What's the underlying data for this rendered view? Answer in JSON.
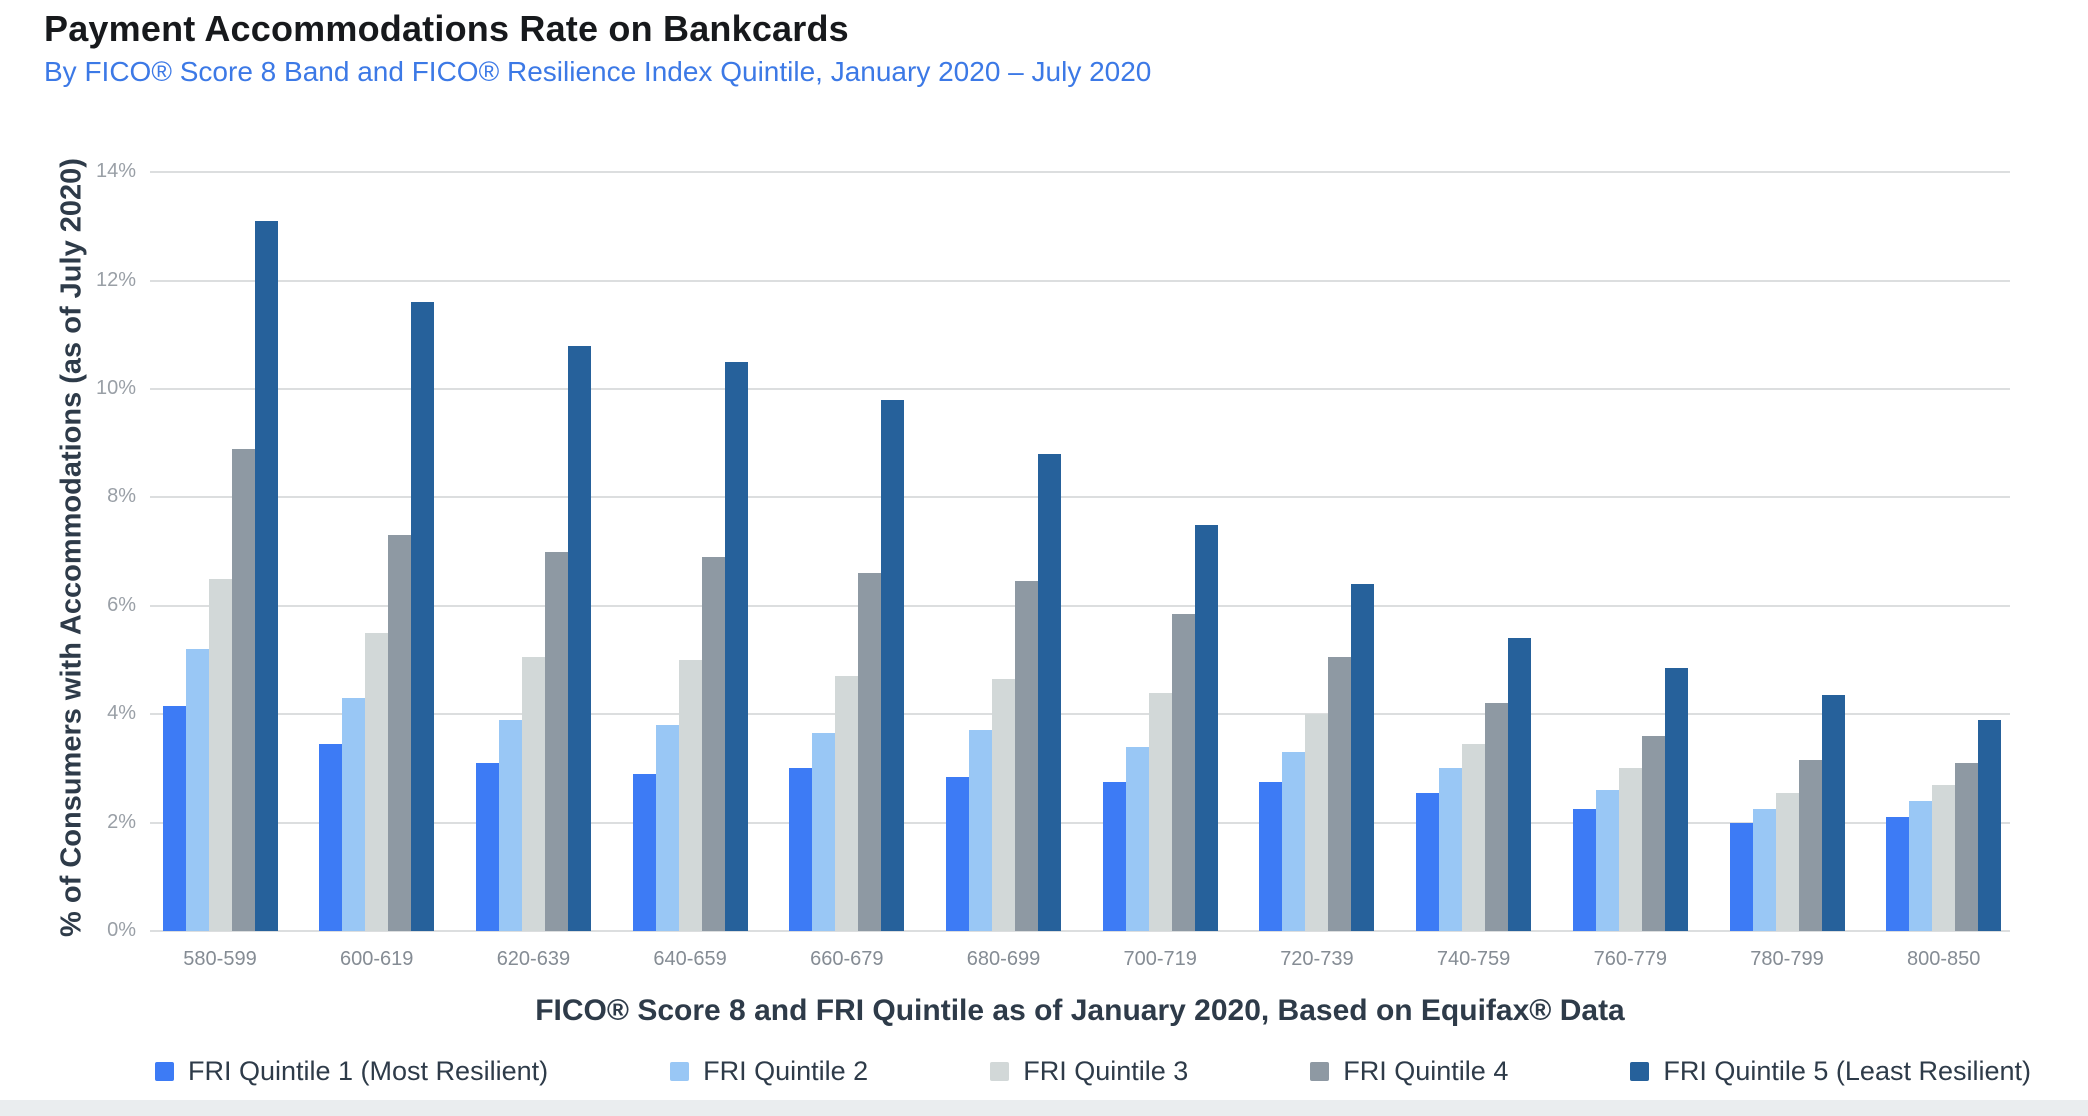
{
  "header": {
    "title": "Payment Accommodations Rate on Bankcards",
    "subtitle": "By FICO® Score 8 Band and FICO® Resilience Index Quintile, January 2020 – July 2020"
  },
  "colors": {
    "title_text": "#17191c",
    "subtitle_text": "#3c79e6",
    "axis_title_text": "#2e3b49",
    "tick_text": "#999fa6",
    "category_text": "#858c94",
    "gridline": "#dcdedf",
    "quintile1": "#3d7bf5",
    "quintile2": "#99c7f5",
    "quintile3": "#d2d8d8",
    "quintile4": "#8e99a3",
    "quintile5": "#26619b",
    "footer_strip": "#eaedef"
  },
  "chart_data": {
    "type": "bar",
    "title": "Payment Accommodations Rate on Bankcards",
    "subtitle": "By FICO® Score 8 Band and FICO® Resilience Index Quintile, January 2020 – July 2020",
    "xlabel": "FICO® Score 8 and FRI Quintile as of January 2020, Based on Equifax® Data",
    "ylabel": "% of Consumers with Accommodations (as of July 2020)",
    "ylim": [
      0,
      14
    ],
    "ytick_step": 2,
    "ytick_labels": [
      "0%",
      "2%",
      "4%",
      "6%",
      "8%",
      "10%",
      "12%",
      "14%"
    ],
    "grid": "horizontal",
    "legend_position": "bottom",
    "categories": [
      "580-599",
      "600-619",
      "620-639",
      "640-659",
      "660-679",
      "680-699",
      "700-719",
      "720-739",
      "740-759",
      "760-779",
      "780-799",
      "800-850"
    ],
    "series": [
      {
        "name": "FRI Quintile 1 (Most Resilient)",
        "color": "#3d7bf5",
        "values": [
          4.15,
          3.45,
          3.1,
          2.9,
          3.0,
          2.85,
          2.75,
          2.75,
          2.55,
          2.25,
          2.0,
          2.1
        ]
      },
      {
        "name": "FRI Quintile 2",
        "color": "#99c7f5",
        "values": [
          5.2,
          4.3,
          3.9,
          3.8,
          3.65,
          3.7,
          3.4,
          3.3,
          3.0,
          2.6,
          2.25,
          2.4
        ]
      },
      {
        "name": "FRI Quintile 3",
        "color": "#d2d8d8",
        "values": [
          6.5,
          5.5,
          5.05,
          5.0,
          4.7,
          4.65,
          4.4,
          4.0,
          3.45,
          3.0,
          2.55,
          2.7
        ]
      },
      {
        "name": "FRI Quintile 4",
        "color": "#8e99a3",
        "values": [
          8.9,
          7.3,
          7.0,
          6.9,
          6.6,
          6.45,
          5.85,
          5.05,
          4.2,
          3.6,
          3.15,
          3.1
        ]
      },
      {
        "name": "FRI Quintile 5 (Least Resilient)",
        "color": "#26619b",
        "values": [
          13.1,
          11.6,
          10.8,
          10.5,
          9.8,
          8.8,
          7.5,
          6.4,
          5.4,
          4.85,
          4.35,
          3.9
        ]
      }
    ]
  }
}
